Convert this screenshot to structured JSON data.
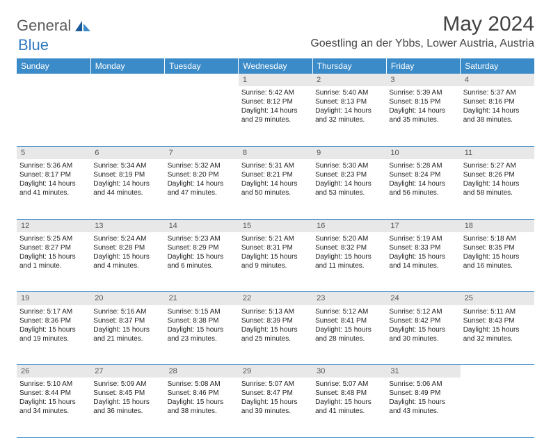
{
  "logo": {
    "general": "General",
    "blue": "Blue"
  },
  "title": "May 2024",
  "location": "Goestling an der Ybbs, Lower Austria, Austria",
  "colors": {
    "header_bg": "#3b8bc9",
    "header_text": "#ffffff",
    "daynum_bg": "#e8e8e8",
    "daynum_text": "#555555",
    "border": "#3b8bc9",
    "body_text": "#222222",
    "logo_general": "#5a5a5a",
    "logo_blue": "#2f7bbf"
  },
  "weekdays": [
    "Sunday",
    "Monday",
    "Tuesday",
    "Wednesday",
    "Thursday",
    "Friday",
    "Saturday"
  ],
  "weeks": [
    [
      null,
      null,
      null,
      {
        "n": "1",
        "sr": "Sunrise: 5:42 AM",
        "ss": "Sunset: 8:12 PM",
        "d1": "Daylight: 14 hours",
        "d2": "and 29 minutes."
      },
      {
        "n": "2",
        "sr": "Sunrise: 5:40 AM",
        "ss": "Sunset: 8:13 PM",
        "d1": "Daylight: 14 hours",
        "d2": "and 32 minutes."
      },
      {
        "n": "3",
        "sr": "Sunrise: 5:39 AM",
        "ss": "Sunset: 8:15 PM",
        "d1": "Daylight: 14 hours",
        "d2": "and 35 minutes."
      },
      {
        "n": "4",
        "sr": "Sunrise: 5:37 AM",
        "ss": "Sunset: 8:16 PM",
        "d1": "Daylight: 14 hours",
        "d2": "and 38 minutes."
      }
    ],
    [
      {
        "n": "5",
        "sr": "Sunrise: 5:36 AM",
        "ss": "Sunset: 8:17 PM",
        "d1": "Daylight: 14 hours",
        "d2": "and 41 minutes."
      },
      {
        "n": "6",
        "sr": "Sunrise: 5:34 AM",
        "ss": "Sunset: 8:19 PM",
        "d1": "Daylight: 14 hours",
        "d2": "and 44 minutes."
      },
      {
        "n": "7",
        "sr": "Sunrise: 5:32 AM",
        "ss": "Sunset: 8:20 PM",
        "d1": "Daylight: 14 hours",
        "d2": "and 47 minutes."
      },
      {
        "n": "8",
        "sr": "Sunrise: 5:31 AM",
        "ss": "Sunset: 8:21 PM",
        "d1": "Daylight: 14 hours",
        "d2": "and 50 minutes."
      },
      {
        "n": "9",
        "sr": "Sunrise: 5:30 AM",
        "ss": "Sunset: 8:23 PM",
        "d1": "Daylight: 14 hours",
        "d2": "and 53 minutes."
      },
      {
        "n": "10",
        "sr": "Sunrise: 5:28 AM",
        "ss": "Sunset: 8:24 PM",
        "d1": "Daylight: 14 hours",
        "d2": "and 56 minutes."
      },
      {
        "n": "11",
        "sr": "Sunrise: 5:27 AM",
        "ss": "Sunset: 8:26 PM",
        "d1": "Daylight: 14 hours",
        "d2": "and 58 minutes."
      }
    ],
    [
      {
        "n": "12",
        "sr": "Sunrise: 5:25 AM",
        "ss": "Sunset: 8:27 PM",
        "d1": "Daylight: 15 hours",
        "d2": "and 1 minute."
      },
      {
        "n": "13",
        "sr": "Sunrise: 5:24 AM",
        "ss": "Sunset: 8:28 PM",
        "d1": "Daylight: 15 hours",
        "d2": "and 4 minutes."
      },
      {
        "n": "14",
        "sr": "Sunrise: 5:23 AM",
        "ss": "Sunset: 8:29 PM",
        "d1": "Daylight: 15 hours",
        "d2": "and 6 minutes."
      },
      {
        "n": "15",
        "sr": "Sunrise: 5:21 AM",
        "ss": "Sunset: 8:31 PM",
        "d1": "Daylight: 15 hours",
        "d2": "and 9 minutes."
      },
      {
        "n": "16",
        "sr": "Sunrise: 5:20 AM",
        "ss": "Sunset: 8:32 PM",
        "d1": "Daylight: 15 hours",
        "d2": "and 11 minutes."
      },
      {
        "n": "17",
        "sr": "Sunrise: 5:19 AM",
        "ss": "Sunset: 8:33 PM",
        "d1": "Daylight: 15 hours",
        "d2": "and 14 minutes."
      },
      {
        "n": "18",
        "sr": "Sunrise: 5:18 AM",
        "ss": "Sunset: 8:35 PM",
        "d1": "Daylight: 15 hours",
        "d2": "and 16 minutes."
      }
    ],
    [
      {
        "n": "19",
        "sr": "Sunrise: 5:17 AM",
        "ss": "Sunset: 8:36 PM",
        "d1": "Daylight: 15 hours",
        "d2": "and 19 minutes."
      },
      {
        "n": "20",
        "sr": "Sunrise: 5:16 AM",
        "ss": "Sunset: 8:37 PM",
        "d1": "Daylight: 15 hours",
        "d2": "and 21 minutes."
      },
      {
        "n": "21",
        "sr": "Sunrise: 5:15 AM",
        "ss": "Sunset: 8:38 PM",
        "d1": "Daylight: 15 hours",
        "d2": "and 23 minutes."
      },
      {
        "n": "22",
        "sr": "Sunrise: 5:13 AM",
        "ss": "Sunset: 8:39 PM",
        "d1": "Daylight: 15 hours",
        "d2": "and 25 minutes."
      },
      {
        "n": "23",
        "sr": "Sunrise: 5:12 AM",
        "ss": "Sunset: 8:41 PM",
        "d1": "Daylight: 15 hours",
        "d2": "and 28 minutes."
      },
      {
        "n": "24",
        "sr": "Sunrise: 5:12 AM",
        "ss": "Sunset: 8:42 PM",
        "d1": "Daylight: 15 hours",
        "d2": "and 30 minutes."
      },
      {
        "n": "25",
        "sr": "Sunrise: 5:11 AM",
        "ss": "Sunset: 8:43 PM",
        "d1": "Daylight: 15 hours",
        "d2": "and 32 minutes."
      }
    ],
    [
      {
        "n": "26",
        "sr": "Sunrise: 5:10 AM",
        "ss": "Sunset: 8:44 PM",
        "d1": "Daylight: 15 hours",
        "d2": "and 34 minutes."
      },
      {
        "n": "27",
        "sr": "Sunrise: 5:09 AM",
        "ss": "Sunset: 8:45 PM",
        "d1": "Daylight: 15 hours",
        "d2": "and 36 minutes."
      },
      {
        "n": "28",
        "sr": "Sunrise: 5:08 AM",
        "ss": "Sunset: 8:46 PM",
        "d1": "Daylight: 15 hours",
        "d2": "and 38 minutes."
      },
      {
        "n": "29",
        "sr": "Sunrise: 5:07 AM",
        "ss": "Sunset: 8:47 PM",
        "d1": "Daylight: 15 hours",
        "d2": "and 39 minutes."
      },
      {
        "n": "30",
        "sr": "Sunrise: 5:07 AM",
        "ss": "Sunset: 8:48 PM",
        "d1": "Daylight: 15 hours",
        "d2": "and 41 minutes."
      },
      {
        "n": "31",
        "sr": "Sunrise: 5:06 AM",
        "ss": "Sunset: 8:49 PM",
        "d1": "Daylight: 15 hours",
        "d2": "and 43 minutes."
      },
      null
    ]
  ]
}
